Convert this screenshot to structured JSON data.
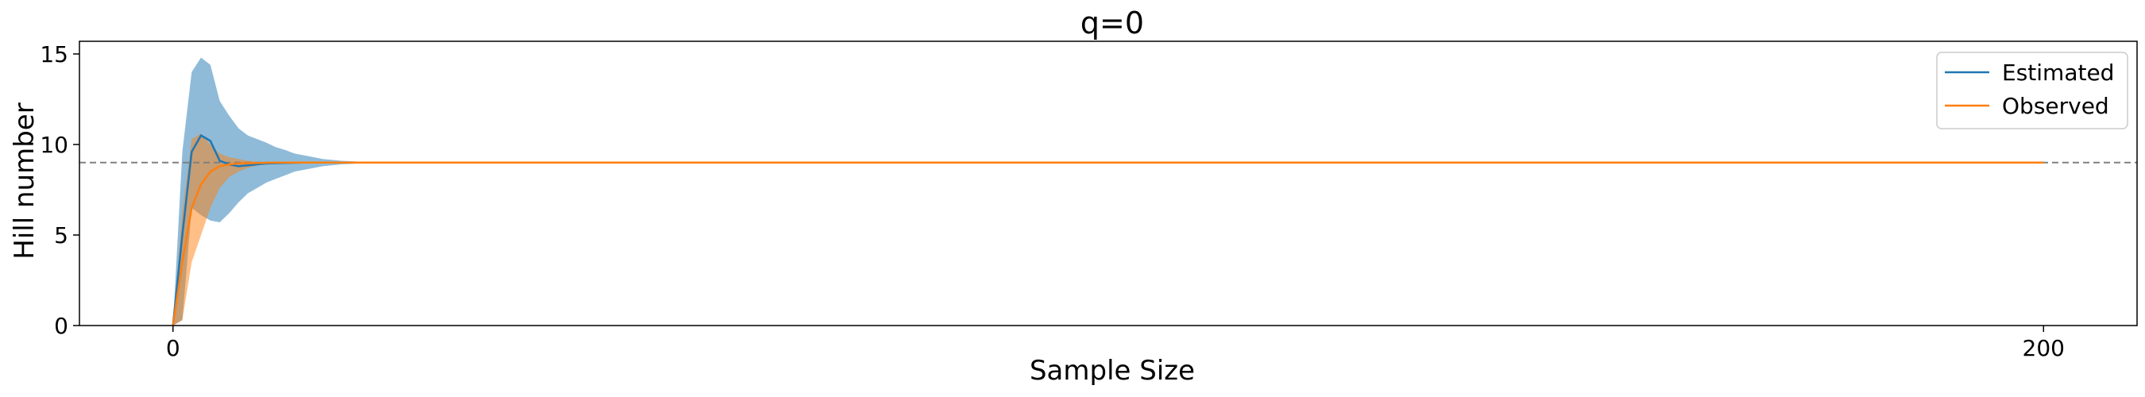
{
  "chart_data": {
    "type": "line",
    "title": "q=0",
    "xlabel": "Sample Size",
    "ylabel": "Hill number",
    "xlim": [
      -10,
      210
    ],
    "ylim": [
      0,
      15.7
    ],
    "xticks": [
      0,
      200
    ],
    "yticks": [
      0,
      5,
      10,
      15
    ],
    "grid": false,
    "legend_position": "top-right",
    "reference_line": {
      "y": 9,
      "style": "dashed",
      "color": "#808080"
    },
    "x": [
      0,
      1,
      2,
      3,
      4,
      5,
      6,
      7,
      8,
      9,
      10,
      11,
      12,
      13,
      14,
      15,
      16,
      18,
      20,
      25,
      200
    ],
    "series": [
      {
        "name": "Estimated",
        "color": "#1f77b4",
        "values": [
          0,
          5.0,
          9.6,
          10.5,
          10.2,
          9.1,
          8.9,
          8.8,
          8.85,
          8.9,
          8.95,
          8.97,
          8.98,
          8.99,
          9.0,
          9.0,
          9.0,
          9.0,
          9.0,
          9.0,
          9.0
        ],
        "lower": [
          0,
          0.3,
          6.5,
          6.1,
          5.8,
          5.7,
          6.2,
          6.8,
          7.3,
          7.6,
          7.9,
          8.1,
          8.3,
          8.5,
          8.6,
          8.7,
          8.8,
          8.9,
          8.95,
          9.0,
          9.0
        ],
        "upper": [
          0,
          9.6,
          14.0,
          14.8,
          14.4,
          12.4,
          11.6,
          10.9,
          10.5,
          10.3,
          10.1,
          9.85,
          9.7,
          9.5,
          9.4,
          9.3,
          9.2,
          9.1,
          9.05,
          9.0,
          9.0
        ]
      },
      {
        "name": "Observed",
        "color": "#ff7f0e",
        "values": [
          0,
          3.5,
          6.5,
          7.8,
          8.5,
          8.8,
          8.9,
          8.95,
          8.97,
          8.98,
          8.99,
          9.0,
          9.0,
          9.0,
          9.0,
          9.0,
          9.0,
          9.0,
          9.0,
          9.0,
          9.0
        ],
        "lower": [
          0,
          0.3,
          3.5,
          5.0,
          6.5,
          7.6,
          8.2,
          8.5,
          8.7,
          8.85,
          8.9,
          8.95,
          9.0,
          9.0,
          9.0,
          9.0,
          9.0,
          9.0,
          9.0,
          9.0,
          9.0
        ],
        "upper": [
          0,
          6.3,
          10.3,
          10.6,
          10.0,
          9.5,
          9.3,
          9.2,
          9.1,
          9.05,
          9.0,
          9.0,
          9.0,
          9.0,
          9.0,
          9.0,
          9.0,
          9.0,
          9.0,
          9.0,
          9.0
        ]
      }
    ]
  }
}
